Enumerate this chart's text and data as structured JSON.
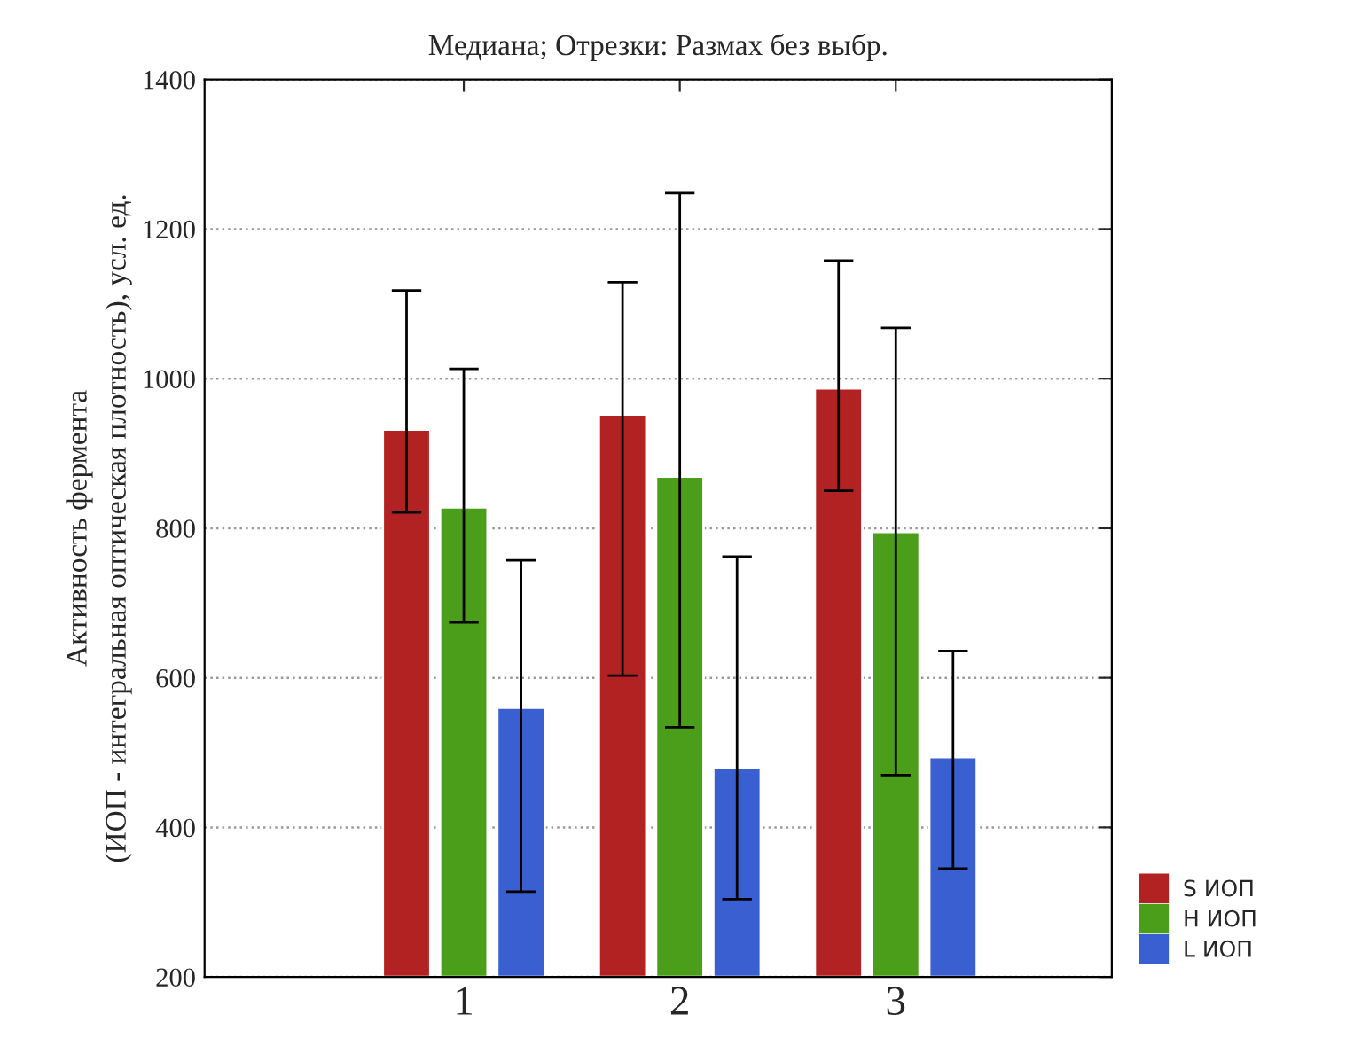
{
  "chart_data": {
    "type": "bar",
    "title": "Медиана; Отрезки: Размах без выбр.",
    "ylabel": "Активность фермента\n(ИОП - интегральная оптическая плотность), усл. ед.",
    "categories": [
      "1",
      "2",
      "3"
    ],
    "series": [
      {
        "name": "S ИОП",
        "color": "#b22222",
        "values": [
          932,
          952,
          987
        ],
        "errors": [
          [
            821,
            1118
          ],
          [
            603,
            1129
          ],
          [
            850,
            1158
          ]
        ]
      },
      {
        "name": "H ИОП",
        "color": "#4a9e1a",
        "values": [
          828,
          869,
          795
        ],
        "errors": [
          [
            674,
            1013
          ],
          [
            534,
            1248
          ],
          [
            470,
            1068
          ]
        ]
      },
      {
        "name": "L ИОП",
        "color": "#3a5fd0",
        "values": [
          560,
          480,
          494
        ],
        "errors": [
          [
            314,
            757
          ],
          [
            304,
            762
          ],
          [
            345,
            636
          ]
        ]
      }
    ],
    "ylim": [
      200,
      1400
    ],
    "yticks": [
      200,
      400,
      600,
      800,
      1000,
      1200,
      1400
    ],
    "grid": "y",
    "legend": "bottom right"
  }
}
